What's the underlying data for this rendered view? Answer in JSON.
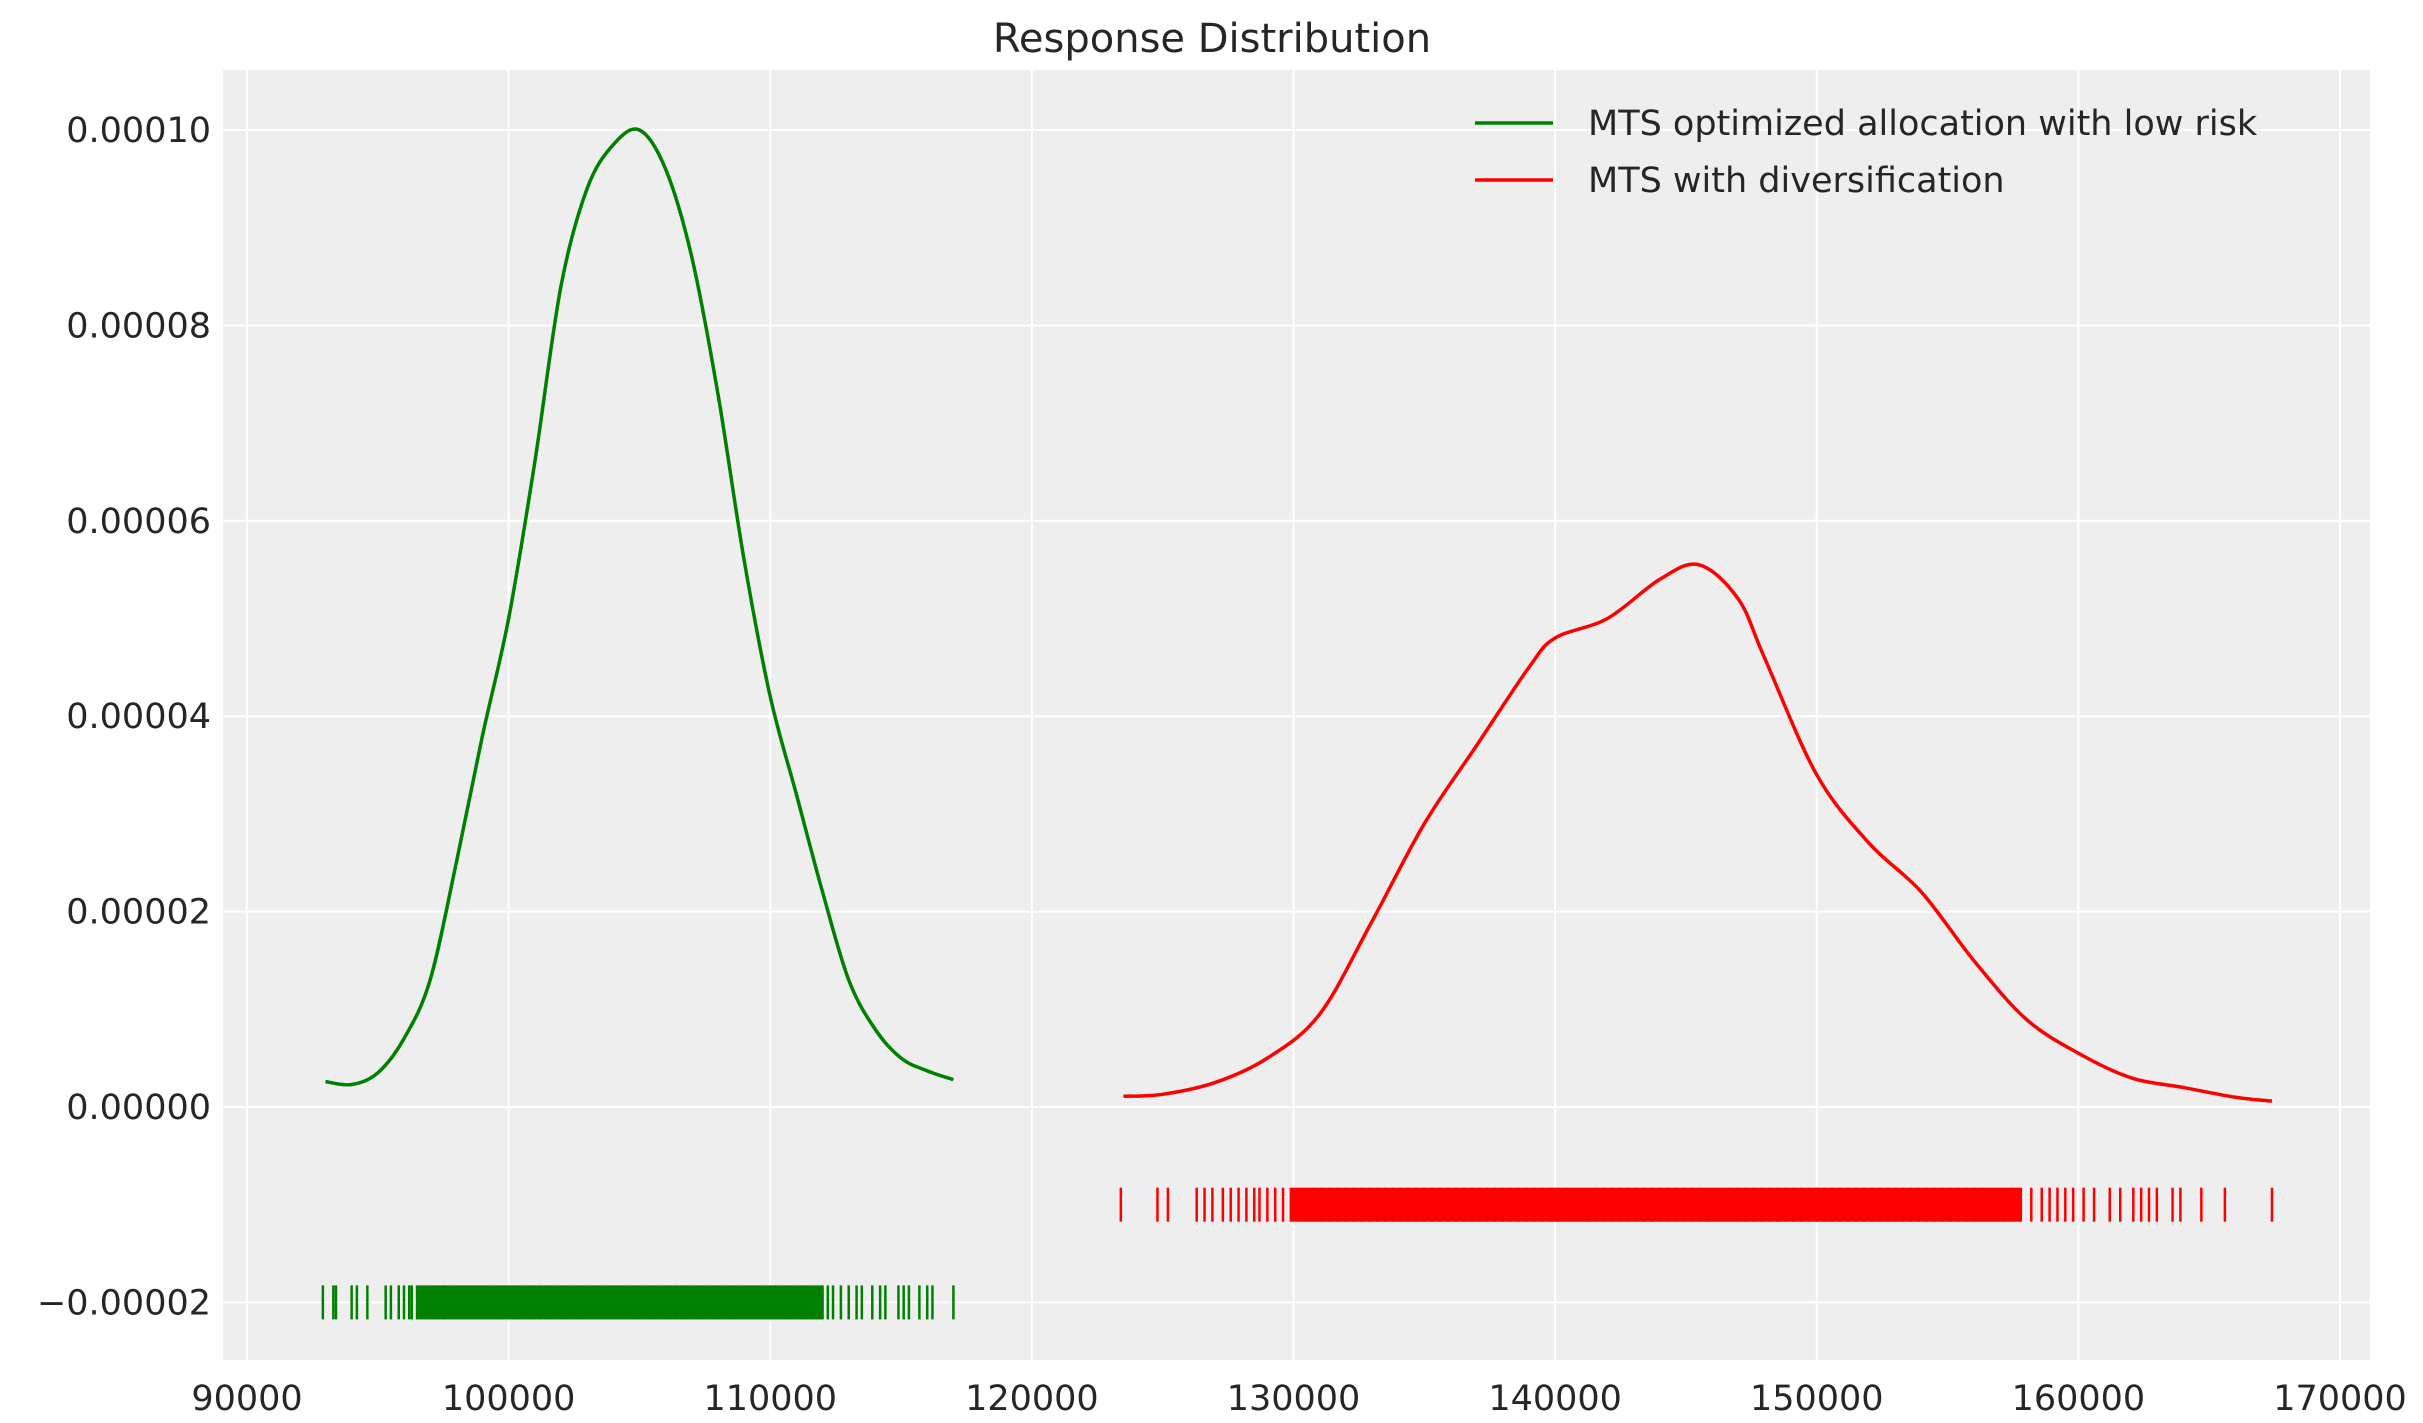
{
  "chart_data": {
    "type": "line",
    "title": "Response Distribution",
    "xlabel": "",
    "ylabel": "",
    "xlim": [
      89000,
      171000
    ],
    "ylim": [
      -2.6e-05,
      0.000106
    ],
    "xticks": [
      90000,
      100000,
      110000,
      120000,
      130000,
      140000,
      150000,
      160000,
      170000
    ],
    "yticks": [
      -2e-05,
      0,
      2e-05,
      4e-05,
      6e-05,
      8e-05,
      0.0001
    ],
    "ytick_labels": [
      "−0.00002",
      "0.00000",
      "0.00002",
      "0.00004",
      "0.00006",
      "0.00008",
      "0.00010"
    ],
    "xtick_labels": [
      "90000",
      "100000",
      "110000",
      "120000",
      "130000",
      "140000",
      "150000",
      "160000",
      "170000"
    ],
    "grid": true,
    "background": "#eeeeee",
    "legend_position": "top-right",
    "series": [
      {
        "name": "MTS optimized allocation with low risk",
        "color": "#008000",
        "rug_level": -2e-05,
        "x": [
          93000,
          94000,
          95000,
          96000,
          97000,
          98000,
          99000,
          100000,
          101000,
          102000,
          103000,
          104000,
          105000,
          106000,
          107000,
          108000,
          109000,
          110000,
          111000,
          112000,
          113000,
          114000,
          115000,
          116000,
          117000
        ],
        "y": [
          2.6e-06,
          2.3e-06,
          3.5e-06,
          7e-06,
          1.3e-05,
          2.5e-05,
          3.8e-05,
          5e-05,
          6.6e-05,
          8.4e-05,
          9.4e-05,
          9.85e-05,
          0.0001,
          9.6e-05,
          8.7e-05,
          7.3e-05,
          5.6e-05,
          4.2e-05,
          3.2e-05,
          2.2e-05,
          1.3e-05,
          8e-06,
          5e-06,
          3.7e-06,
          2.8e-06
        ],
        "rug": [
          92900,
          93300,
          93400,
          94000,
          94200,
          94600,
          95300,
          95500,
          95800,
          96000,
          96200,
          96300,
          96500,
          96700,
          96900,
          97100,
          97300,
          97500,
          97600,
          97800,
          98000,
          98200,
          98400,
          98600,
          98800,
          99000,
          99200,
          99400,
          99600,
          99800,
          100000,
          100200,
          100400,
          100600,
          100800,
          101000,
          101200,
          101400,
          101600,
          101800,
          102000,
          102200,
          102400,
          102600,
          102800,
          103000,
          103200,
          103400,
          103600,
          103800,
          104000,
          104200,
          104400,
          104600,
          104800,
          105000,
          105200,
          105400,
          105600,
          105800,
          106000,
          106200,
          106400,
          106600,
          106800,
          107000,
          107200,
          107400,
          107600,
          107800,
          108000,
          108200,
          108400,
          108600,
          108800,
          109000,
          109200,
          109400,
          109600,
          109800,
          110000,
          110200,
          110400,
          110600,
          110800,
          111000,
          111200,
          111400,
          111600,
          111800,
          112000,
          112200,
          112400,
          112700,
          113000,
          113300,
          113500,
          113900,
          114200,
          114400,
          114900,
          115100,
          115300,
          115700,
          116000,
          116200,
          117000
        ]
      },
      {
        "name": "MTS with diversification",
        "color": "#ff0000",
        "rug_level": -1e-05,
        "x": [
          123500,
          125000,
          127000,
          129000,
          131000,
          133000,
          135000,
          137000,
          139000,
          140000,
          142000,
          144000,
          145500,
          147000,
          148000,
          150000,
          152000,
          154000,
          156000,
          158000,
          160000,
          162000,
          164000,
          166000,
          167400
        ],
        "y": [
          1.1e-06,
          1.3e-06,
          2.5e-06,
          5e-06,
          9.5e-06,
          1.9e-05,
          2.9e-05,
          3.7e-05,
          4.5e-05,
          4.8e-05,
          5e-05,
          5.4e-05,
          5.55e-05,
          5.2e-05,
          4.6e-05,
          3.4e-05,
          2.7e-05,
          2.2e-05,
          1.5e-05,
          9e-06,
          5.5e-06,
          3e-06,
          2e-06,
          1e-06,
          6e-07
        ],
        "rug": [
          123400,
          124800,
          125200,
          126300,
          126600,
          126900,
          127300,
          127600,
          127900,
          128200,
          128500,
          128700,
          129000,
          129300,
          129600,
          129900,
          130200,
          130500,
          130800,
          131100,
          131400,
          131700,
          132000,
          132300,
          132600,
          132900,
          133200,
          133500,
          133800,
          134100,
          134400,
          134700,
          135000,
          135300,
          135600,
          135900,
          136200,
          136500,
          136800,
          137100,
          137400,
          137700,
          138000,
          138300,
          138600,
          138900,
          139200,
          139500,
          139800,
          140100,
          140400,
          140700,
          141000,
          141300,
          141600,
          141900,
          142200,
          142500,
          142800,
          143100,
          143400,
          143700,
          144000,
          144300,
          144600,
          144900,
          145200,
          145500,
          145800,
          146100,
          146400,
          146700,
          147000,
          147300,
          147600,
          147900,
          148200,
          148500,
          148800,
          149100,
          149400,
          149700,
          150000,
          150300,
          150600,
          150900,
          151200,
          151500,
          151800,
          152100,
          152400,
          152700,
          153000,
          153300,
          153600,
          153900,
          154200,
          154500,
          154800,
          155100,
          155400,
          155700,
          156000,
          156300,
          156600,
          156900,
          157200,
          157500,
          157800,
          158200,
          158600,
          158900,
          159200,
          159500,
          159800,
          160200,
          160600,
          161200,
          161600,
          162100,
          162400,
          162700,
          163000,
          163600,
          163900,
          164700,
          165600,
          167400
        ]
      }
    ]
  }
}
